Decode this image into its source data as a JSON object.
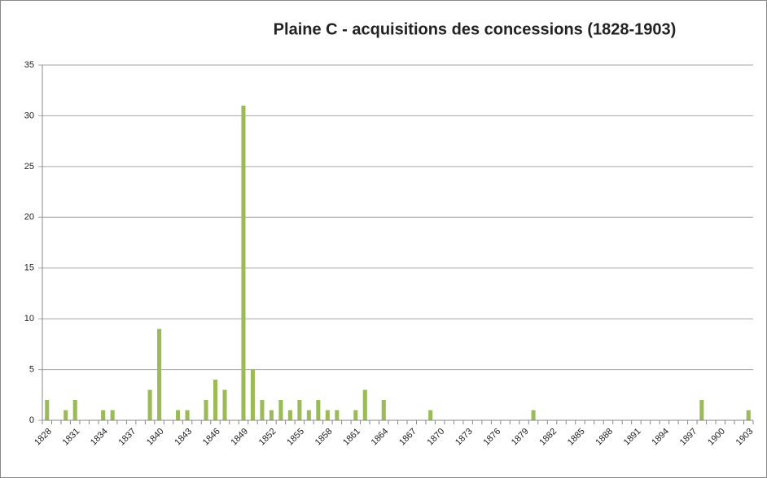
{
  "chart_data": {
    "type": "bar",
    "title": "Plaine C - acquisitions des concessions (1828-1903)",
    "categories": [
      "1828",
      null,
      null,
      "1831",
      null,
      null,
      "1834",
      null,
      null,
      "1837",
      null,
      null,
      "1840",
      null,
      null,
      "1843",
      null,
      null,
      "1846",
      null,
      null,
      "1849",
      null,
      null,
      "1852",
      null,
      null,
      "1855",
      null,
      null,
      "1858",
      null,
      null,
      "1861",
      null,
      null,
      "1864",
      null,
      null,
      "1867",
      null,
      null,
      "1870",
      null,
      null,
      "1873",
      null,
      null,
      "1876",
      null,
      null,
      "1879",
      null,
      null,
      "1882",
      null,
      null,
      "1885",
      null,
      null,
      "1888",
      null,
      null,
      "1891",
      null,
      null,
      "1894",
      null,
      null,
      "1897",
      null,
      null,
      "1900",
      null,
      null,
      "1903"
    ],
    "values": [
      2,
      0,
      1,
      2,
      0,
      0,
      1,
      1,
      0,
      0,
      0,
      3,
      9,
      0,
      1,
      1,
      0,
      2,
      4,
      3,
      0,
      31,
      5,
      2,
      1,
      2,
      1,
      2,
      1,
      2,
      1,
      1,
      0,
      1,
      3,
      0,
      2,
      0,
      0,
      0,
      0,
      1,
      0,
      0,
      0,
      0,
      0,
      0,
      0,
      0,
      0,
      0,
      1,
      0,
      0,
      0,
      0,
      0,
      0,
      0,
      0,
      0,
      0,
      0,
      0,
      0,
      0,
      0,
      0,
      0,
      2,
      0,
      0,
      0,
      0,
      1
    ],
    "color": "#9bbb59",
    "ylim": [
      0,
      35
    ],
    "yticks": [
      0,
      5,
      10,
      15,
      20,
      25,
      30,
      35
    ],
    "grid": true
  }
}
